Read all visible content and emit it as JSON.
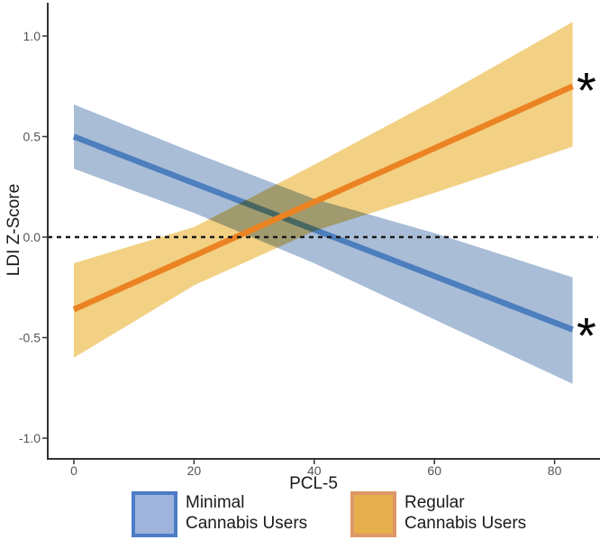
{
  "figure": {
    "background": "#ffffff",
    "axis_color": "#333333",
    "tick_label_color": "#555555",
    "text_color": "#1a1a1a"
  },
  "chart_data": {
    "type": "line",
    "title": "",
    "xlabel": "PCL-5",
    "ylabel": "LDI Z-Score",
    "xlim": [
      -4,
      87
    ],
    "ylim": [
      -1.18,
      1.18
    ],
    "grid": false,
    "legend_position": "bottom",
    "reference_line": {
      "y": 0.0,
      "style": "dashed",
      "color": "#1a1a1a"
    },
    "x_ticks": [
      0,
      20,
      40,
      60,
      80
    ],
    "x_tick_labels": [
      "0",
      "20",
      "40",
      "60",
      "80"
    ],
    "y_ticks": [
      1.0,
      0.5,
      0.0,
      -0.5,
      -1.0
    ],
    "y_tick_labels": [
      "1.0",
      "0.5",
      "0.0",
      "-0.5",
      "-1.0"
    ],
    "x": [
      0,
      20,
      40,
      60,
      83
    ],
    "series": [
      {
        "name": "Minimal Cannabis Users",
        "values": [
          0.5,
          0.268,
          0.037,
          -0.194,
          -0.46
        ],
        "ci_upper": [
          0.66,
          0.42,
          0.19,
          0.02,
          -0.2
        ],
        "ci_lower": [
          0.34,
          0.12,
          -0.13,
          -0.41,
          -0.73
        ],
        "line_color": "#4d7ebe",
        "band_color": "#a9bdd7",
        "significance": "*"
      },
      {
        "name": "Regular Cannabis Users",
        "values": [
          -0.36,
          -0.093,
          0.175,
          0.442,
          0.75
        ],
        "ci_upper": [
          -0.13,
          0.05,
          0.36,
          0.68,
          1.07
        ],
        "ci_lower": [
          -0.6,
          -0.24,
          0.03,
          0.22,
          0.45
        ],
        "line_color": "#eb8322",
        "band_color": "#f2d184",
        "significance": "*"
      }
    ],
    "annotations": [
      {
        "text": "*",
        "x": 85.3,
        "y": 0.77,
        "series": "Regular Cannabis Users",
        "color": "#000000"
      },
      {
        "text": "*",
        "x": 85.3,
        "y": -0.45,
        "series": "Minimal Cannabis Users",
        "color": "#000000"
      }
    ]
  },
  "legend": {
    "items": [
      {
        "line1": "Minimal",
        "line2": "Cannabis Users",
        "fill": "#9fb4dc",
        "border": "#4a7cc7"
      },
      {
        "line1": "Regular",
        "line2": "Cannabis Users",
        "fill": "#e7ae4d",
        "border": "#dd9768"
      }
    ]
  }
}
